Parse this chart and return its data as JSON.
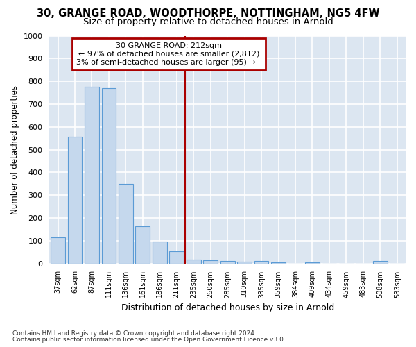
{
  "title1": "30, GRANGE ROAD, WOODTHORPE, NOTTINGHAM, NG5 4FW",
  "title2": "Size of property relative to detached houses in Arnold",
  "xlabel": "Distribution of detached houses by size in Arnold",
  "ylabel": "Number of detached properties",
  "categories": [
    "37sqm",
    "62sqm",
    "87sqm",
    "111sqm",
    "136sqm",
    "161sqm",
    "186sqm",
    "211sqm",
    "235sqm",
    "260sqm",
    "285sqm",
    "310sqm",
    "335sqm",
    "359sqm",
    "384sqm",
    "409sqm",
    "434sqm",
    "459sqm",
    "483sqm",
    "508sqm",
    "533sqm"
  ],
  "values": [
    113,
    557,
    775,
    770,
    348,
    163,
    97,
    53,
    18,
    13,
    10,
    8,
    10,
    5,
    0,
    5,
    0,
    0,
    0,
    10,
    0
  ],
  "bar_color": "#c5d8ed",
  "bar_edge_color": "#5b9bd5",
  "marker_index": 7,
  "marker_color": "#aa0000",
  "annotation_title": "30 GRANGE ROAD: 212sqm",
  "annotation_line1": "← 97% of detached houses are smaller (2,812)",
  "annotation_line2": "3% of semi-detached houses are larger (95) →",
  "annotation_box_color": "#aa0000",
  "ylim": [
    0,
    1000
  ],
  "yticks": [
    0,
    100,
    200,
    300,
    400,
    500,
    600,
    700,
    800,
    900,
    1000
  ],
  "footer1": "Contains HM Land Registry data © Crown copyright and database right 2024.",
  "footer2": "Contains public sector information licensed under the Open Government Licence v3.0.",
  "fig_bg_color": "#ffffff",
  "plot_bg_color": "#dce6f1",
  "grid_color": "#ffffff",
  "title1_fontsize": 10.5,
  "title2_fontsize": 9.5
}
